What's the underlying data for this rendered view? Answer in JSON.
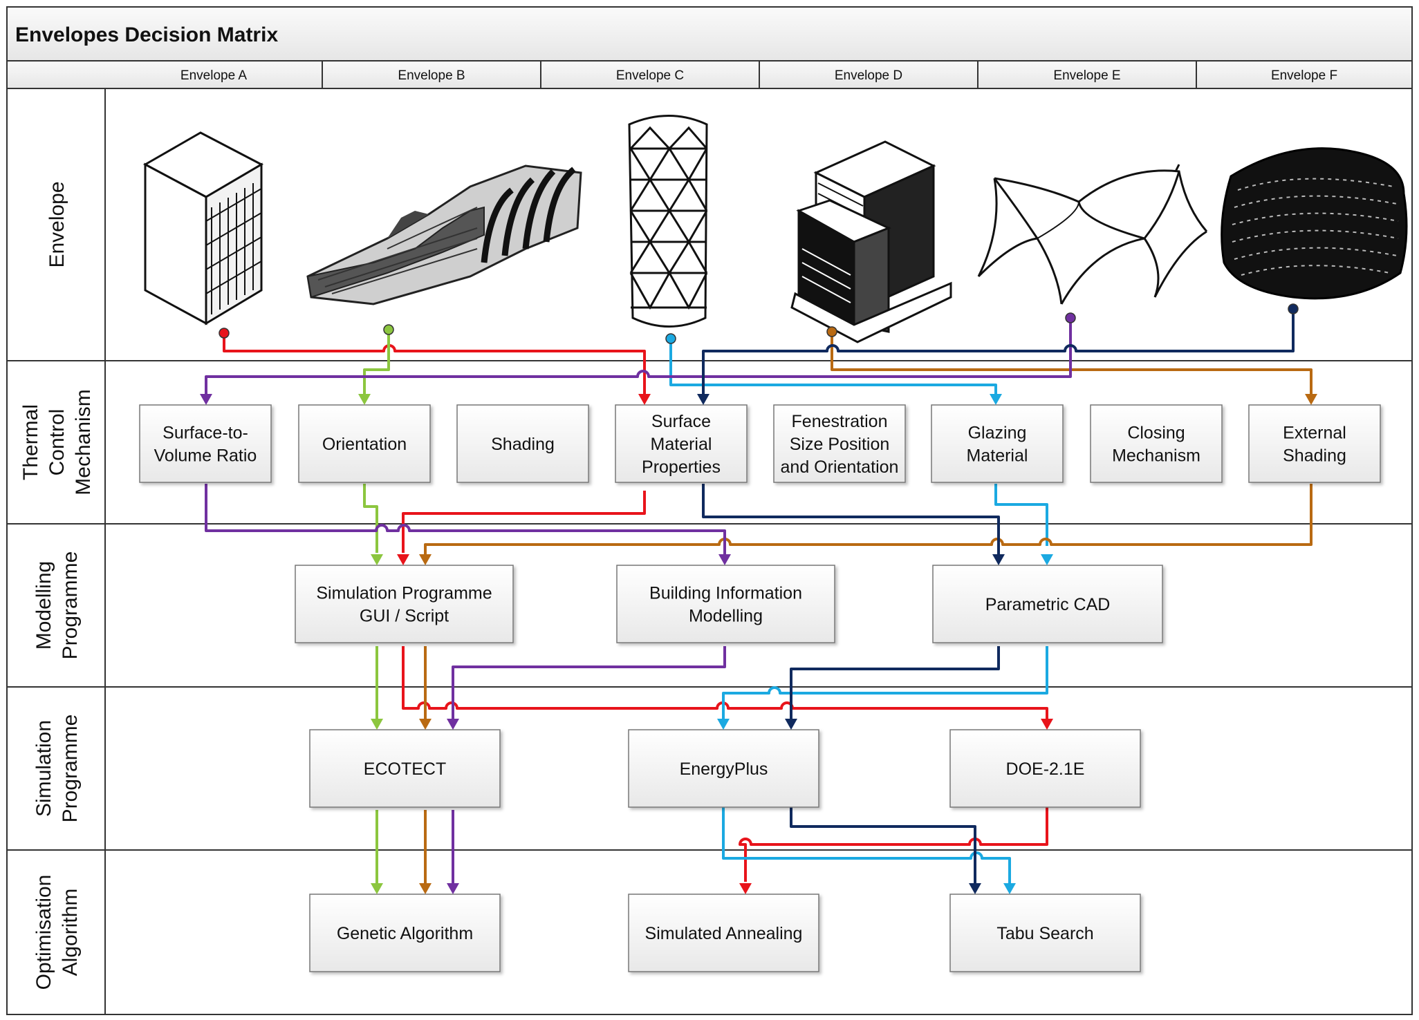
{
  "title": "Envelopes Decision Matrix",
  "columns": [
    "Envelope A",
    "Envelope B",
    "Envelope C",
    "Envelope D",
    "Envelope E",
    "Envelope F"
  ],
  "rows": [
    {
      "id": "envelope",
      "lines": [
        "Envelope"
      ]
    },
    {
      "id": "thermal-control-mechanism",
      "lines": [
        "Thermal",
        "Control",
        "Mechanism"
      ]
    },
    {
      "id": "modelling-programme",
      "lines": [
        "Modelling",
        "Programme"
      ]
    },
    {
      "id": "simulation-programme",
      "lines": [
        "Simulation",
        "Programme"
      ]
    },
    {
      "id": "optimisation-algorithm",
      "lines": [
        "Optimisation",
        "Algorithm"
      ]
    }
  ],
  "boxes": [
    {
      "id": "surface-to-volume-ratio",
      "lines": [
        "Surface-to-",
        "Volume Ratio"
      ]
    },
    {
      "id": "orientation",
      "lines": [
        "Orientation"
      ]
    },
    {
      "id": "shading",
      "lines": [
        "Shading"
      ]
    },
    {
      "id": "surface-material-properties",
      "lines": [
        "Surface",
        "Material",
        "Properties"
      ]
    },
    {
      "id": "fenestration",
      "lines": [
        "Fenestration",
        "Size Position",
        "and Orientation"
      ]
    },
    {
      "id": "glazing-material",
      "lines": [
        "Glazing",
        "Material"
      ]
    },
    {
      "id": "closing-mechanism",
      "lines": [
        "Closing",
        "Mechanism"
      ]
    },
    {
      "id": "external-shading",
      "lines": [
        "External",
        "Shading"
      ]
    },
    {
      "id": "simulation-programme-gui-script",
      "lines": [
        "Simulation Programme",
        "GUI / Script"
      ]
    },
    {
      "id": "building-information-modelling",
      "lines": [
        "Building Information",
        "Modelling"
      ]
    },
    {
      "id": "parametric-cad",
      "lines": [
        "Parametric CAD"
      ]
    },
    {
      "id": "ecotect",
      "lines": [
        "ECOTECT"
      ]
    },
    {
      "id": "energyplus",
      "lines": [
        "EnergyPlus"
      ]
    },
    {
      "id": "doe-2-1e",
      "lines": [
        "DOE-2.1E"
      ]
    },
    {
      "id": "genetic-algorithm",
      "lines": [
        "Genetic Algorithm"
      ]
    },
    {
      "id": "simulated-annealing",
      "lines": [
        "Simulated Annealing"
      ]
    },
    {
      "id": "tabu-search",
      "lines": [
        "Tabu Search"
      ]
    }
  ],
  "colors": {
    "envelope_a": "#e8141b",
    "envelope_b": "#8cc63f",
    "envelope_c": "#1ba9e1",
    "envelope_d": "#b96a12",
    "envelope_e": "#7030a0",
    "envelope_f": "#102a5e"
  },
  "envelope_icons": [
    "box-tower-with-grid-facade-icon",
    "curved-ribbon-building-icon",
    "triangulated-diagrid-tower-icon",
    "stepped-slab-block-icon",
    "tensile-membrane-canopy-icon",
    "dense-louvred-drum-icon"
  ],
  "paths": [
    {
      "from": "Envelope A",
      "to": [
        "Surface Material Properties",
        "Simulation Programme GUI / Script",
        "ECOTECT",
        "DOE-2.1E",
        "Simulated Annealing"
      ]
    },
    {
      "from": "Envelope B",
      "to": [
        "Orientation",
        "Simulation Programme GUI / Script",
        "ECOTECT",
        "Genetic Algorithm"
      ]
    },
    {
      "from": "Envelope C",
      "to": [
        "Glazing Material",
        "Parametric CAD",
        "EnergyPlus",
        "Tabu Search"
      ]
    },
    {
      "from": "Envelope D",
      "to": [
        "External Shading",
        "Simulation Programme GUI / Script",
        "ECOTECT",
        "Genetic Algorithm"
      ]
    },
    {
      "from": "Envelope E",
      "to": [
        "Surface-to-Volume Ratio",
        "Building Information Modelling",
        "ECOTECT",
        "Genetic Algorithm"
      ]
    },
    {
      "from": "Envelope F",
      "to": [
        "Surface Material Properties",
        "Parametric CAD",
        "EnergyPlus",
        "Tabu Search"
      ]
    }
  ]
}
